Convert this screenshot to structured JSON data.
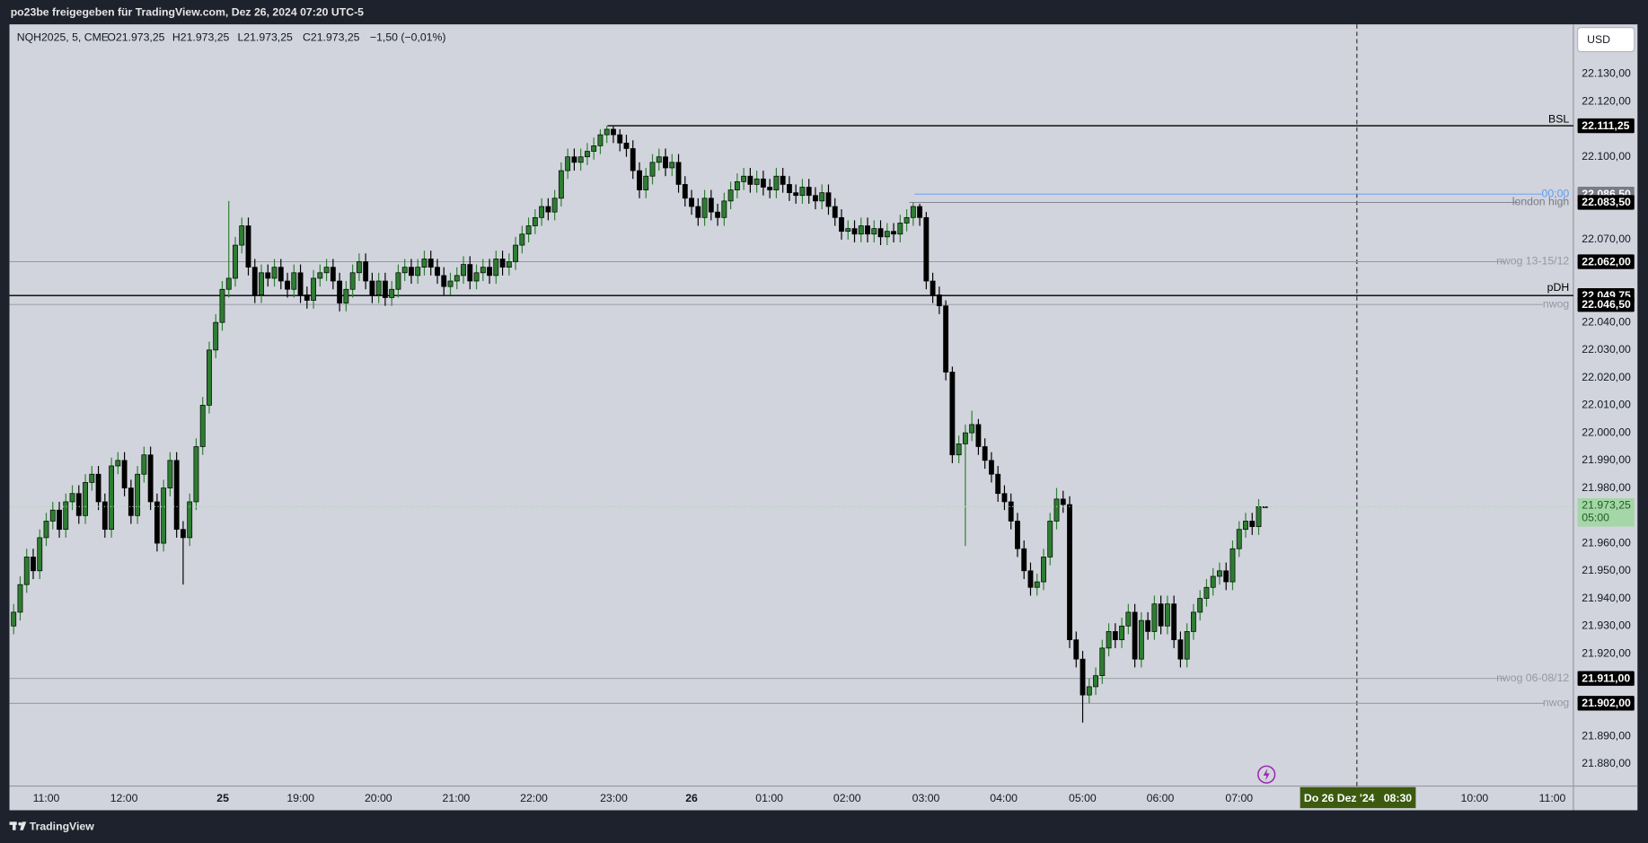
{
  "header": {
    "title": "po23be freigegeben für TradingView.com, Dez 26, 2024 07:20 UTC-5"
  },
  "chart_data": {
    "type": "candlestick",
    "symbol": "NQH2025, 5, CME",
    "legend_ohlc": [
      "O21.973,25",
      "H21.973,25",
      "L21.973,25",
      "C21.973,25"
    ],
    "legend_change": "−1,50 (−0,01%)",
    "currency": "USD",
    "up_color": "#2e7d32",
    "down_color": "#000000",
    "ylim": [
      21872,
      22148
    ],
    "yticks": [
      {
        "value": 22130,
        "label": "22.130,00"
      },
      {
        "value": 22120,
        "label": "22.120,00"
      },
      {
        "value": 22100,
        "label": "22.100,00"
      },
      {
        "value": 22070,
        "label": "22.070,00"
      },
      {
        "value": 22040,
        "label": "22.040,00"
      },
      {
        "value": 22030,
        "label": "22.030,00"
      },
      {
        "value": 22020,
        "label": "22.020,00"
      },
      {
        "value": 22010,
        "label": "22.010,00"
      },
      {
        "value": 22000,
        "label": "22.000,00"
      },
      {
        "value": 21990,
        "label": "21.990,00"
      },
      {
        "value": 21980,
        "label": "21.980,00"
      },
      {
        "value": 21960,
        "label": "21.960,00"
      },
      {
        "value": 21950,
        "label": "21.950,00"
      },
      {
        "value": 21940,
        "label": "21.940,00"
      },
      {
        "value": 21930,
        "label": "21.930,00"
      },
      {
        "value": 21920,
        "label": "21.920,00"
      },
      {
        "value": 21890,
        "label": "21.890,00"
      },
      {
        "value": 21880,
        "label": "21.880,00"
      }
    ],
    "xticks": [
      "11:00",
      "12:00",
      "25",
      "19:00",
      "20:00",
      "21:00",
      "22:00",
      "23:00",
      "26",
      "01:00",
      "02:00",
      "03:00",
      "04:00",
      "05:00",
      "06:00",
      "07:00",
      "10:00",
      "11:00"
    ],
    "open": [
      21930,
      21935,
      21945,
      21955,
      21950,
      21962,
      21968,
      21972,
      21965,
      21975,
      21978,
      21970,
      21982,
      21985,
      21975,
      21965,
      21988,
      21990,
      21980,
      21970,
      21985,
      21992,
      21975,
      21960,
      21980,
      21990,
      21965,
      21962,
      21975,
      21995,
      22010,
      22030,
      22040,
      22052,
      22056,
      22068,
      22075,
      22060,
      22050,
      22058,
      22056,
      22060,
      22055,
      22052,
      22058,
      22050,
      22048,
      22056,
      22058,
      22060,
      22055,
      22047,
      22052,
      22058,
      22062,
      22055,
      22050,
      22055,
      22049,
      22052,
      22058,
      22060,
      22057,
      22060,
      22063,
      22060,
      22057,
      22053,
      22055,
      22057,
      22061,
      22055,
      22058,
      22060,
      22057,
      22063,
      22060,
      22062,
      22068,
      22072,
      22075,
      22078,
      22082,
      22080,
      22085,
      22095,
      22100,
      22098,
      22100,
      22102,
      22104,
      22108,
      22110,
      22108,
      22105,
      22103,
      22095,
      22088,
      22093,
      22098,
      22100,
      22096,
      22098,
      22090,
      22085,
      22082,
      22078,
      22085,
      22080,
      22078,
      22084,
      22088,
      22091,
      22093,
      22090,
      22092,
      22089,
      22088,
      22093,
      22090,
      22087,
      22086,
      22089,
      22086,
      22084,
      22087,
      22082,
      22078,
      22073,
      22074,
      22072,
      22075,
      22072,
      22074,
      22071,
      22073,
      22072,
      22076,
      22078,
      22082,
      22078,
      22055,
      22050,
      22046,
      22022,
      21992,
      21996,
      22000,
      22003,
      21995,
      21990,
      21985,
      21978,
      21975,
      21968,
      21958,
      21950,
      21944,
      21946,
      21955,
      21968,
      21976,
      21974,
      21925,
      21918,
      21905,
      21908,
      21912,
      21922,
      21928,
      21925,
      21930,
      21935,
      21918,
      21932,
      21928,
      21938,
      21930,
      21938,
      21925,
      21918,
      21928,
      21935,
      21940,
      21944,
      21948,
      21950,
      21946,
      21958,
      21965,
      21968,
      21966,
      21973.25
    ],
    "high": [
      21938,
      21948,
      21958,
      21958,
      21965,
      21971,
      21975,
      21975,
      21978,
      21981,
      21981,
      21985,
      21988,
      21988,
      21978,
      21991,
      21993,
      21993,
      21983,
      21988,
      21995,
      21995,
      21978,
      21983,
      21993,
      21993,
      21968,
      21978,
      21998,
      22013,
      22033,
      22043,
      22055,
      22084,
      22071,
      22078,
      22078,
      22063,
      22061,
      22061,
      22063,
      22063,
      22058,
      22061,
      22061,
      22053,
      22059,
      22061,
      22063,
      22063,
      22058,
      22055,
      22061,
      22065,
      22065,
      22058,
      22058,
      22058,
      22055,
      22061,
      22063,
      22063,
      22063,
      22066,
      22066,
      22063,
      22060,
      22058,
      22060,
      22064,
      22064,
      22061,
      22063,
      22063,
      22066,
      22066,
      22065,
      22071,
      22075,
      22078,
      22081,
      22085,
      22085,
      22088,
      22098,
      22103,
      22103,
      22103,
      22105,
      22107,
      22110,
      22111.25,
      22111,
      22110,
      22108,
      22106,
      22098,
      22096,
      22101,
      22103,
      22103,
      22101,
      22101,
      22093,
      22088,
      22085,
      22088,
      22088,
      22083,
      22087,
      22091,
      22094,
      22096,
      22096,
      22095,
      22095,
      22092,
      22096,
      22096,
      22093,
      22090,
      22092,
      22092,
      22089,
      22090,
      22090,
      22085,
      22081,
      22077,
      22077,
      22078,
      22078,
      22077,
      22077,
      22076,
      22076,
      22079,
      22081,
      22083.5,
      22083,
      22080,
      22058,
      22053,
      22048,
      22024,
      21999,
      22003,
      22008,
      22005,
      21998,
      21993,
      21988,
      21981,
      21978,
      21971,
      21961,
      21953,
      21949,
      21958,
      21971,
      21980,
      21979,
      21977,
      21928,
      21921,
      21911,
      21915,
      21925,
      21931,
      21931,
      21933,
      21938,
      21938,
      21935,
      21935,
      21941,
      21941,
      21941,
      21941,
      21928,
      21931,
      21938,
      21943,
      21947,
      21951,
      21953,
      21953,
      21961,
      21968,
      21971,
      21971,
      21976,
      21973.25
    ],
    "low": [
      21927,
      21932,
      21942,
      21947,
      21947,
      21959,
      21965,
      21962,
      21962,
      21972,
      21967,
      21967,
      21979,
      21972,
      21962,
      21962,
      21985,
      21977,
      21967,
      21967,
      21982,
      21972,
      21957,
      21957,
      21977,
      21962,
      21945,
      21959,
      21972,
      21992,
      22007,
      22027,
      22037,
      22049,
      22053,
      22065,
      22057,
      22047,
      22047,
      22053,
      22053,
      22052,
      22049,
      22049,
      22047,
      22045,
      22045,
      22053,
      22055,
      22052,
      22044,
      22044,
      22049,
      22055,
      22052,
      22047,
      22047,
      22046,
      22046,
      22049,
      22055,
      22054,
      22054,
      22057,
      22057,
      22054,
      22050,
      22050,
      22052,
      22054,
      22052,
      22052,
      22055,
      22054,
      22054,
      22057,
      22057,
      22059,
      22065,
      22069,
      22072,
      22075,
      22077,
      22077,
      22082,
      22092,
      22095,
      22095,
      22097,
      22099,
      22101,
      22105,
      22105,
      22102,
      22100,
      22092,
      22085,
      22085,
      22090,
      22095,
      22093,
      22093,
      22087,
      22082,
      22079,
      22075,
      22075,
      22077,
      22075,
      22075,
      22081,
      22085,
      22088,
      22087,
      22087,
      22086,
      22085,
      22085,
      22087,
      22084,
      22083,
      22083,
      22083,
      22081,
      22081,
      22079,
      22075,
      22070,
      22070,
      22069,
      22069,
      22069,
      22069,
      22068,
      22068,
      22069,
      22069,
      22073,
      22075,
      22075,
      22052,
      22047,
      22043,
      22019,
      21989,
      21989,
      21959,
      21997,
      21992,
      21987,
      21982,
      21975,
      21972,
      21965,
      21955,
      21947,
      21941,
      21941,
      21943,
      21952,
      21965,
      21971,
      21922,
      21915,
      21895,
      21902,
      21905,
      21909,
      21919,
      21922,
      21922,
      21927,
      21915,
      21915,
      21925,
      21925,
      21927,
      21927,
      21922,
      21915,
      21915,
      21925,
      21932,
      21937,
      21941,
      21945,
      21943,
      21943,
      21955,
      21962,
      21963,
      21963,
      21973.25
    ],
    "close": [
      21935,
      21945,
      21955,
      21950,
      21962,
      21968,
      21972,
      21965,
      21975,
      21978,
      21970,
      21982,
      21985,
      21975,
      21965,
      21988,
      21990,
      21980,
      21970,
      21985,
      21992,
      21975,
      21960,
      21980,
      21990,
      21965,
      21962,
      21975,
      21995,
      22010,
      22030,
      22040,
      22052,
      22056,
      22068,
      22075,
      22060,
      22050,
      22058,
      22056,
      22060,
      22055,
      22052,
      22058,
      22050,
      22048,
      22056,
      22058,
      22060,
      22055,
      22047,
      22052,
      22058,
      22062,
      22055,
      22050,
      22055,
      22049,
      22052,
      22058,
      22060,
      22057,
      22060,
      22063,
      22060,
      22057,
      22053,
      22055,
      22057,
      22061,
      22055,
      22058,
      22060,
      22057,
      22063,
      22060,
      22062,
      22068,
      22072,
      22075,
      22078,
      22082,
      22080,
      22085,
      22095,
      22100,
      22098,
      22100,
      22102,
      22104,
      22108,
      22110,
      22108,
      22105,
      22103,
      22095,
      22088,
      22093,
      22098,
      22100,
      22096,
      22098,
      22090,
      22085,
      22082,
      22078,
      22085,
      22080,
      22078,
      22084,
      22088,
      22091,
      22093,
      22090,
      22092,
      22089,
      22088,
      22093,
      22090,
      22087,
      22086,
      22089,
      22086,
      22084,
      22087,
      22082,
      22078,
      22073,
      22074,
      22072,
      22075,
      22072,
      22074,
      22071,
      22073,
      22072,
      22076,
      22078,
      22082,
      22078,
      22055,
      22050,
      22046,
      22022,
      21992,
      21996,
      22000,
      22003,
      21995,
      21990,
      21985,
      21978,
      21975,
      21968,
      21958,
      21950,
      21944,
      21946,
      21955,
      21968,
      21976,
      21974,
      21925,
      21918,
      21905,
      21908,
      21912,
      21922,
      21928,
      21925,
      21930,
      21935,
      21918,
      21932,
      21928,
      21938,
      21930,
      21938,
      21925,
      21918,
      21928,
      21935,
      21940,
      21944,
      21948,
      21950,
      21946,
      21958,
      21965,
      21968,
      21966,
      21973.25,
      21973.25
    ],
    "levels": [
      {
        "name": "BSL",
        "value": 22111.25,
        "label": "22.111,25",
        "color": "#000000",
        "box_color": "#000000"
      },
      {
        "name": "00:00",
        "value": 22086.5,
        "label": "22.086,50",
        "color": "#5b9cf6",
        "box_color": "#787b86"
      },
      {
        "name": "london high",
        "value": 22083.5,
        "label": "22.083,50",
        "color": "#787b86",
        "box_color": "#000000"
      },
      {
        "name": "nwog 13-15/12",
        "value": 22062,
        "label": "22.062,00",
        "color": "#9598a1",
        "box_color": "#000000"
      },
      {
        "name": "pDH",
        "value": 22049.75,
        "label": "22.049,75",
        "color": "#000000",
        "box_color": "#000000"
      },
      {
        "name": "nwog",
        "value": 22046.5,
        "label": "22.046,50",
        "color": "#9598a1",
        "box_color": "#000000"
      },
      {
        "name": "nwog 06-08/12",
        "value": 21911,
        "label": "21.911,00",
        "color": "#9598a1",
        "box_color": "#000000"
      },
      {
        "name": "nwog",
        "value": 21902,
        "label": "21.902,00",
        "color": "#9598a1",
        "box_color": "#000000"
      }
    ],
    "last_price": {
      "value": 21973.25,
      "label": "21.973,25",
      "countdown": "05:00",
      "color": "#a5d6a7"
    },
    "crosshair": {
      "label": "Do 26 Dez '24   08:30"
    }
  },
  "footer": {
    "brand": "TradingView"
  }
}
